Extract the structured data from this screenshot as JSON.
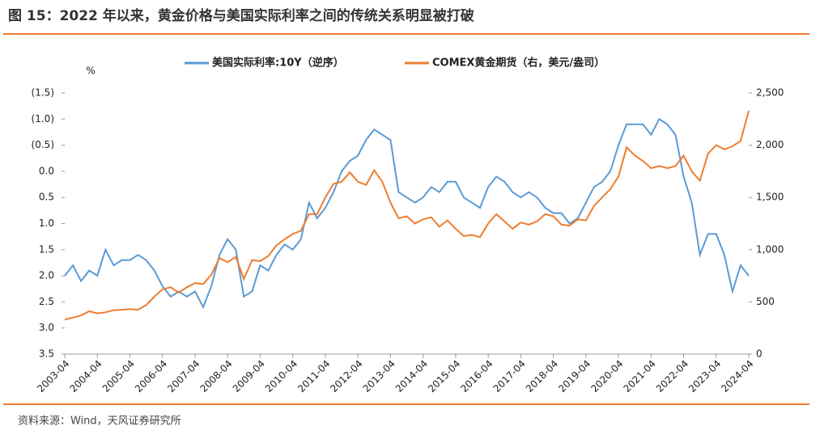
{
  "chart_data": {
    "type": "line",
    "title": "图 15：2022 年以来，黄金价格与美国实际利率之间的传统关系明显被打破",
    "source": "资料来源：Wind，天风证券研究所",
    "y_label": "%",
    "x": [
      "2003-04",
      "2003-07",
      "2003-10",
      "2004-01",
      "2004-04",
      "2004-07",
      "2004-10",
      "2005-01",
      "2005-04",
      "2005-07",
      "2005-10",
      "2006-01",
      "2006-04",
      "2006-07",
      "2006-10",
      "2007-01",
      "2007-04",
      "2007-07",
      "2007-10",
      "2008-01",
      "2008-04",
      "2008-07",
      "2008-10",
      "2009-01",
      "2009-04",
      "2009-07",
      "2009-10",
      "2010-01",
      "2010-04",
      "2010-07",
      "2010-10",
      "2011-01",
      "2011-04",
      "2011-07",
      "2011-10",
      "2012-01",
      "2012-04",
      "2012-07",
      "2012-10",
      "2013-01",
      "2013-04",
      "2013-07",
      "2013-10",
      "2014-01",
      "2014-04",
      "2014-07",
      "2014-10",
      "2015-01",
      "2015-04",
      "2015-07",
      "2015-10",
      "2016-01",
      "2016-04",
      "2016-07",
      "2016-10",
      "2017-01",
      "2017-04",
      "2017-07",
      "2017-10",
      "2018-01",
      "2018-04",
      "2018-07",
      "2018-10",
      "2019-01",
      "2019-04",
      "2019-07",
      "2019-10",
      "2020-01",
      "2020-04",
      "2020-07",
      "2020-10",
      "2021-01",
      "2021-04",
      "2021-07",
      "2021-10",
      "2022-01",
      "2022-04",
      "2022-07",
      "2022-10",
      "2023-01",
      "2023-04",
      "2023-07",
      "2023-10",
      "2024-01",
      "2024-04"
    ],
    "xticks": [
      "2003-04",
      "2004-04",
      "2005-04",
      "2006-04",
      "2007-04",
      "2008-04",
      "2009-04",
      "2010-04",
      "2011-04",
      "2012-04",
      "2013-04",
      "2014-04",
      "2015-04",
      "2016-04",
      "2017-04",
      "2018-04",
      "2019-04",
      "2020-04",
      "2021-04",
      "2022-04",
      "2023-04",
      "2024-04"
    ],
    "series": [
      {
        "name": "美国实际利率:10Y（逆序）",
        "color": "#5b9bd5",
        "values": [
          2.0,
          1.8,
          2.1,
          1.9,
          2.0,
          1.5,
          1.8,
          1.7,
          1.7,
          1.6,
          1.7,
          1.9,
          2.2,
          2.4,
          2.3,
          2.4,
          2.3,
          2.6,
          2.2,
          1.6,
          1.3,
          1.5,
          2.4,
          2.3,
          1.8,
          1.9,
          1.6,
          1.4,
          1.5,
          1.3,
          0.6,
          0.9,
          0.7,
          0.4,
          0.0,
          -0.2,
          -0.3,
          -0.6,
          -0.8,
          -0.7,
          -0.6,
          0.4,
          0.5,
          0.6,
          0.5,
          0.3,
          0.4,
          0.2,
          0.2,
          0.5,
          0.6,
          0.7,
          0.3,
          0.1,
          0.2,
          0.4,
          0.5,
          0.4,
          0.5,
          0.7,
          0.8,
          0.8,
          1.0,
          0.9,
          0.6,
          0.3,
          0.2,
          0.0,
          -0.5,
          -0.9,
          -0.9,
          -0.9,
          -0.7,
          -1.0,
          -0.9,
          -0.7,
          0.1,
          0.6,
          1.6,
          1.2,
          1.2,
          1.6,
          2.3,
          1.8,
          2.0
        ]
      },
      {
        "name": "COMEX黄金期货（右，美元/盎司）",
        "color": "#ed7d31",
        "axis": "y2",
        "values": [
          330,
          350,
          370,
          410,
          390,
          400,
          420,
          425,
          430,
          425,
          470,
          550,
          620,
          640,
          590,
          640,
          680,
          670,
          760,
          920,
          880,
          930,
          720,
          900,
          890,
          940,
          1040,
          1100,
          1150,
          1180,
          1340,
          1340,
          1500,
          1630,
          1650,
          1740,
          1650,
          1620,
          1760,
          1650,
          1450,
          1300,
          1320,
          1250,
          1290,
          1310,
          1220,
          1280,
          1200,
          1130,
          1140,
          1120,
          1250,
          1340,
          1270,
          1200,
          1260,
          1240,
          1270,
          1340,
          1320,
          1240,
          1230,
          1290,
          1280,
          1420,
          1500,
          1580,
          1700,
          1980,
          1900,
          1850,
          1780,
          1800,
          1780,
          1800,
          1900,
          1750,
          1660,
          1920,
          2000,
          1960,
          1990,
          2040,
          2330
        ]
      }
    ],
    "ylim": [
      3.5,
      -1.5
    ],
    "yticks": [
      {
        "value": -1.5,
        "label": "(1.5)"
      },
      {
        "value": -1.0,
        "label": "(1.0)"
      },
      {
        "value": -0.5,
        "label": "(0.5)"
      },
      {
        "value": 0,
        "label": "0.0"
      },
      0.5,
      {
        "value": 1.0,
        "label": "1.0"
      },
      1.5,
      {
        "value": 2.0,
        "label": "2.0"
      },
      2.5,
      {
        "value": 3.0,
        "label": "3.0"
      },
      3.5
    ],
    "y2lim": [
      0,
      2500
    ],
    "y2ticks": [
      0,
      500,
      {
        "value": 1000,
        "label": "1,000"
      },
      {
        "value": 1500,
        "label": "1,500"
      },
      {
        "value": 2000,
        "label": "2,000"
      },
      {
        "value": 2500,
        "label": "2,500"
      }
    ],
    "grid": false
  }
}
